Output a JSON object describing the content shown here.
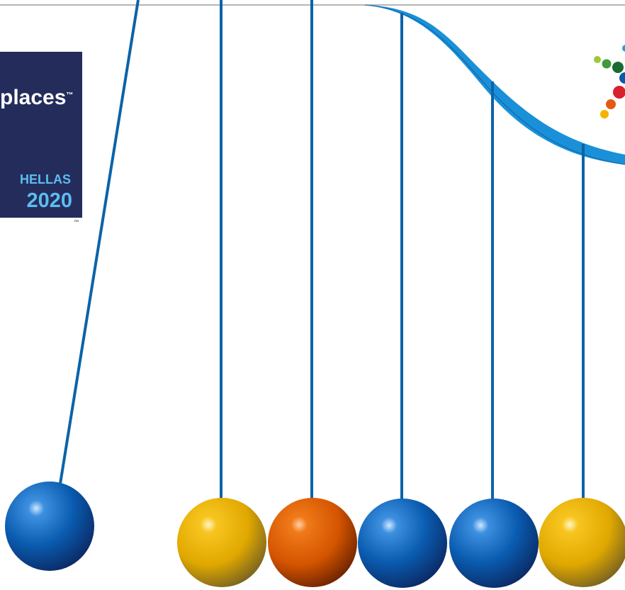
{
  "logo": {
    "text": "places",
    "trademark": "™"
  },
  "badge": {
    "country": "HELLAS",
    "year": "2020",
    "trademark": "™"
  }
}
